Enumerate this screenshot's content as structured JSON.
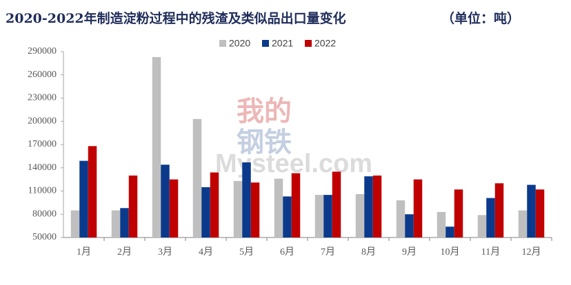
{
  "chart_data": {
    "type": "bar",
    "title": "2020-2022年制造淀粉过程中的残渣及类似品出口量变化",
    "unit": "（单位：吨）",
    "watermark": [
      "我的",
      "钢铁",
      "Mysteel.com"
    ],
    "categories": [
      "1月",
      "2月",
      "3月",
      "4月",
      "5月",
      "6月",
      "7月",
      "8月",
      "9月",
      "10月",
      "11月",
      "12月"
    ],
    "series": [
      {
        "name": "2020",
        "color": "#bfbfbf",
        "values": [
          85000,
          85000,
          283000,
          203000,
          123000,
          126000,
          105000,
          106000,
          98000,
          83000,
          79000,
          85000
        ]
      },
      {
        "name": "2021",
        "color": "#0b3a8c",
        "values": [
          149000,
          88000,
          144000,
          115000,
          147000,
          103000,
          105000,
          129000,
          80000,
          64000,
          101000,
          118000
        ]
      },
      {
        "name": "2022",
        "color": "#c00000",
        "values": [
          168000,
          130000,
          125000,
          134000,
          121000,
          133000,
          135000,
          130000,
          125000,
          112000,
          120000,
          112000
        ]
      }
    ],
    "ylim": [
      50000,
      290000
    ],
    "yticks": [
      50000,
      80000,
      110000,
      140000,
      170000,
      200000,
      230000,
      260000,
      290000
    ]
  }
}
